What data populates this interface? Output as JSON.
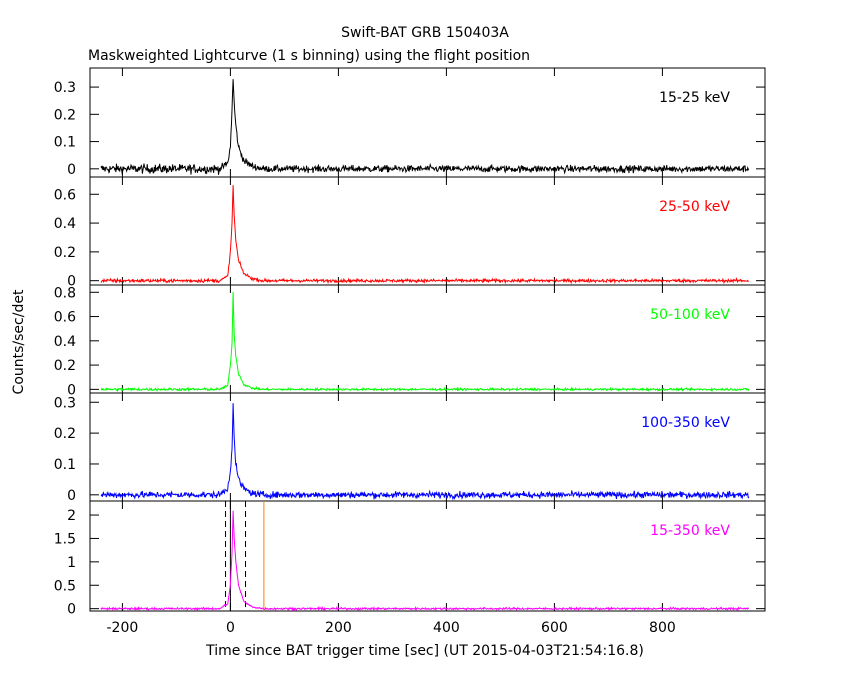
{
  "chart_data": {
    "type": "line",
    "title": "Swift-BAT GRB 150403A",
    "subtitle": "Maskweighted Lightcurve (1 s binning) using the flight position",
    "xlabel": "Time since BAT trigger time [sec] (UT 2015-04-03T21:54:16.8)",
    "ylabel": "Counts/sec/det",
    "xlim": [
      -260,
      990
    ],
    "x_ticks": [
      "-200",
      "0",
      "200",
      "400",
      "600",
      "800"
    ],
    "x_tick_values": [
      -200,
      0,
      200,
      400,
      600,
      800
    ],
    "data_range": [
      -240,
      960
    ],
    "grid": false,
    "panels": [
      {
        "name": "15-25 keV",
        "color": "#000000",
        "ylim": [
          -0.03,
          0.37
        ],
        "y_ticks": [
          "0",
          "0.1",
          "0.2",
          "0.3"
        ],
        "y_tick_values": [
          0,
          0.1,
          0.2,
          0.3
        ],
        "noise": 0.012,
        "preburst_noise": 0.016,
        "points": [
          [
            -240,
            0.0
          ],
          [
            -20,
            0.0
          ],
          [
            -5,
            0.02
          ],
          [
            0,
            0.08
          ],
          [
            3,
            0.22
          ],
          [
            5,
            0.33
          ],
          [
            7,
            0.24
          ],
          [
            10,
            0.16
          ],
          [
            15,
            0.08
          ],
          [
            25,
            0.03
          ],
          [
            40,
            0.01
          ],
          [
            60,
            0.0
          ],
          [
            960,
            0.0
          ]
        ]
      },
      {
        "name": "25-50 keV",
        "color": "#ff0000",
        "ylim": [
          -0.03,
          0.72
        ],
        "y_ticks": [
          "0",
          "0.2",
          "0.4",
          "0.6"
        ],
        "y_tick_values": [
          0,
          0.2,
          0.4,
          0.6
        ],
        "noise": 0.01,
        "preburst_noise": 0.012,
        "points": [
          [
            -240,
            0.0
          ],
          [
            -20,
            0.0
          ],
          [
            -5,
            0.03
          ],
          [
            0,
            0.2
          ],
          [
            3,
            0.4
          ],
          [
            5,
            0.66
          ],
          [
            7,
            0.45
          ],
          [
            10,
            0.28
          ],
          [
            15,
            0.14
          ],
          [
            25,
            0.05
          ],
          [
            40,
            0.015
          ],
          [
            60,
            0.0
          ],
          [
            960,
            0.0
          ]
        ]
      },
      {
        "name": "50-100 keV",
        "color": "#00ff00",
        "ylim": [
          -0.03,
          0.86
        ],
        "y_ticks": [
          "0",
          "0.2",
          "0.4",
          "0.6",
          "0.8"
        ],
        "y_tick_values": [
          0,
          0.2,
          0.4,
          0.6,
          0.8
        ],
        "noise": 0.008,
        "preburst_noise": 0.01,
        "points": [
          [
            -240,
            0.0
          ],
          [
            -20,
            0.0
          ],
          [
            -5,
            0.03
          ],
          [
            0,
            0.2
          ],
          [
            3,
            0.38
          ],
          [
            5,
            0.8
          ],
          [
            7,
            0.45
          ],
          [
            10,
            0.28
          ],
          [
            15,
            0.13
          ],
          [
            25,
            0.04
          ],
          [
            40,
            0.01
          ],
          [
            60,
            0.0
          ],
          [
            960,
            0.0
          ]
        ]
      },
      {
        "name": "100-350 keV",
        "color": "#0000ff",
        "ylim": [
          -0.02,
          0.33
        ],
        "y_ticks": [
          "0",
          "0.1",
          "0.2",
          "0.3"
        ],
        "y_tick_values": [
          0,
          0.1,
          0.2,
          0.3
        ],
        "noise": 0.01,
        "preburst_noise": 0.01,
        "points": [
          [
            -240,
            0.0
          ],
          [
            -20,
            0.0
          ],
          [
            -5,
            0.02
          ],
          [
            0,
            0.08
          ],
          [
            3,
            0.15
          ],
          [
            5,
            0.3
          ],
          [
            7,
            0.18
          ],
          [
            10,
            0.1
          ],
          [
            15,
            0.05
          ],
          [
            25,
            0.02
          ],
          [
            40,
            0.005
          ],
          [
            60,
            0.0
          ],
          [
            960,
            0.0
          ]
        ]
      },
      {
        "name": "15-350 keV",
        "color": "#ff00ff",
        "ylim": [
          -0.05,
          2.3
        ],
        "y_ticks": [
          "0",
          "0.5",
          "1",
          "1.5",
          "2"
        ],
        "y_tick_values": [
          0,
          0.5,
          1,
          1.5,
          2
        ],
        "noise": 0.02,
        "preburst_noise": 0.02,
        "points": [
          [
            -240,
            0.0
          ],
          [
            -20,
            0.0
          ],
          [
            -5,
            0.1
          ],
          [
            0,
            0.5
          ],
          [
            3,
            1.2
          ],
          [
            5,
            2.1
          ],
          [
            7,
            1.5
          ],
          [
            10,
            1.0
          ],
          [
            15,
            0.5
          ],
          [
            25,
            0.15
          ],
          [
            40,
            0.04
          ],
          [
            60,
            0.0
          ],
          [
            960,
            0.0
          ]
        ],
        "dashed_lines_x": [
          -9,
          28
        ],
        "solid_lines_x": [
          0
        ],
        "orange_line_x": 62,
        "orange_color": "#ff7f00"
      }
    ]
  }
}
